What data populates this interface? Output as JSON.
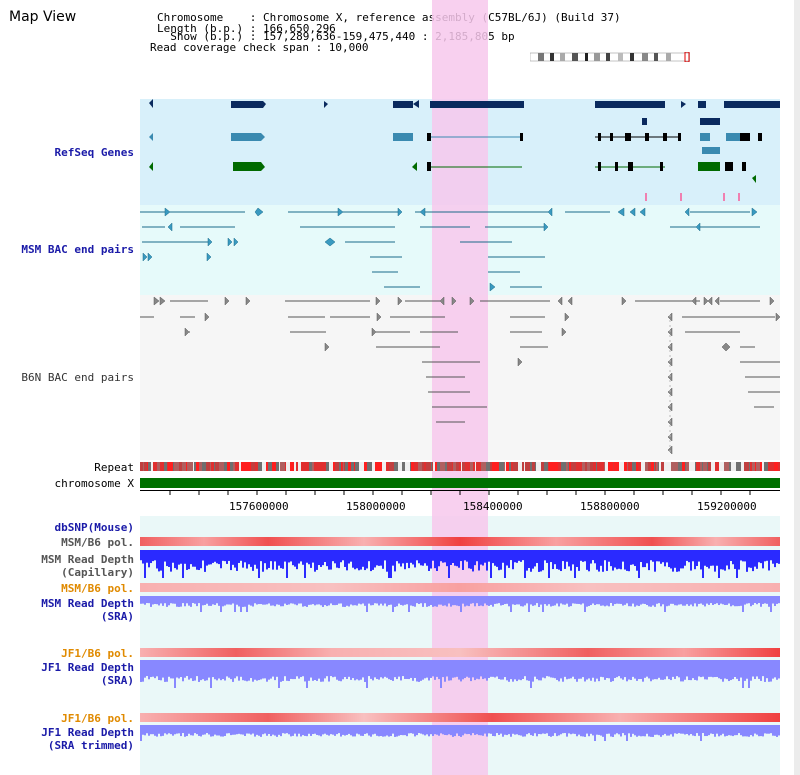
{
  "page": {
    "title": "Map View"
  },
  "header": {
    "chromosome_line": "Chromosome    : Chromosome X, reference assembly (C57BL/6J) (Build 37)",
    "length_line": "Length (b.p.) : 166,650,296",
    "show_line": "  Show (b.p.) : 157,289,636-159,475,440 : 2,185,805 bp",
    "coverage_line": "Read coverage check span : 10,000"
  },
  "tracks": {
    "refseq": "RefSeq Genes",
    "msm_bac": "MSM BAC end pairs",
    "b6n_bac": "B6N BAC end pairs",
    "repeat": "Repeat",
    "chromosome": "chromosome X",
    "dbsnp": "dbSNP(Mouse)",
    "msm_b6_pol_cap": "MSM/B6 pol.",
    "msm_depth_cap_1": "MSM Read Depth",
    "msm_depth_cap_2": "(Capillary)",
    "msm_b6_pol_sra": "MSM/B6 pol.",
    "msm_depth_sra_1": "MSM Read Depth",
    "msm_depth_sra_2": "(SRA)",
    "jf1_b6_pol": "JF1/B6 pol.",
    "jf1_depth_1": "JF1 Read Depth",
    "jf1_depth_2": "(SRA)",
    "jf1_b6_pol_trim": "JF1/B6 pol.",
    "jf1_trim_1": "JF1 Read Depth",
    "jf1_trim_2": "(SRA trimmed)"
  },
  "axis": {
    "ticks": [
      "157600000",
      "158000000",
      "158400000",
      "158800000",
      "159200000"
    ]
  },
  "colors": {
    "refseq_bg": "#d8f0fa",
    "bac_bg": "#e6fafa",
    "gene_dark": "#0a2a5e",
    "gene_mid": "#3a8ab0",
    "gene_green": "#006a00",
    "highlight": "#f7c8ec",
    "chromosome_bar": "#007000",
    "depth_blue": "#2a2aff",
    "depth_light": "#8888ff",
    "pol_red": "#f03030",
    "pol_pink": "#f8b0b0"
  }
}
